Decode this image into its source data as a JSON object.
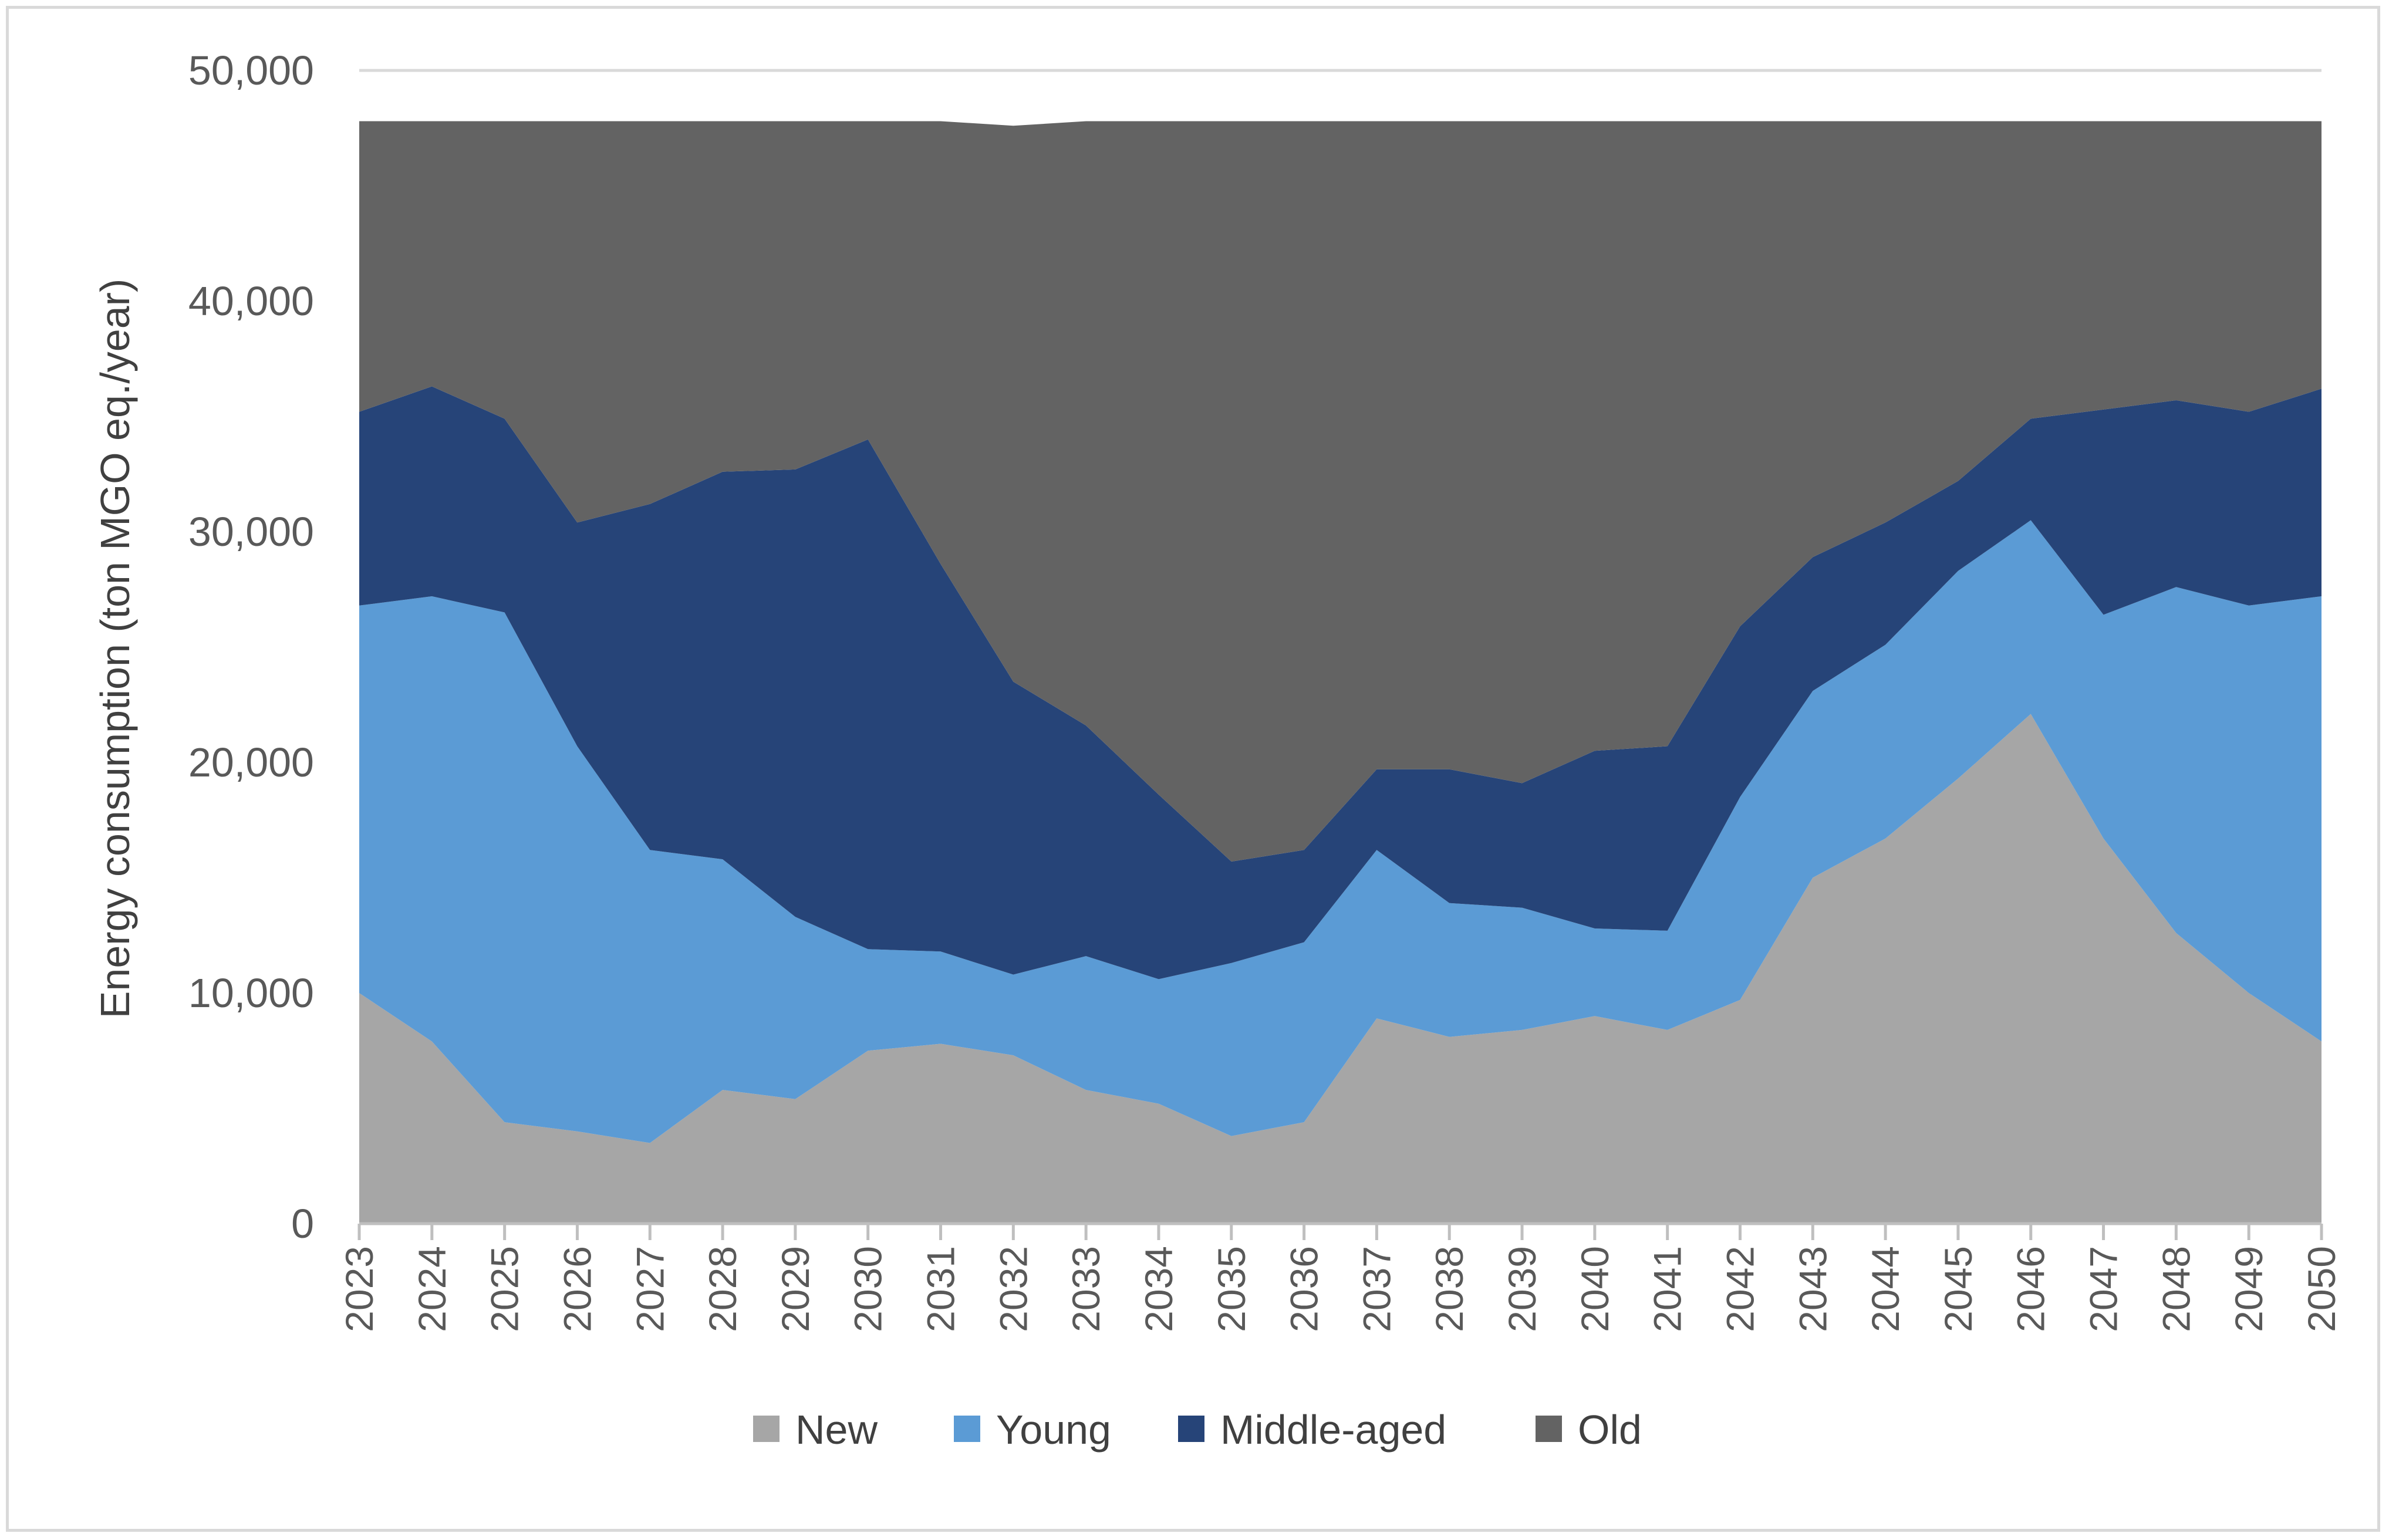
{
  "chart_data": {
    "type": "area",
    "stacked": true,
    "title": "",
    "xlabel": "",
    "ylabel": "Energy consumption (ton MGO eq./year)",
    "ylim": [
      0,
      50000
    ],
    "yticks": [
      0,
      10000,
      20000,
      30000,
      40000,
      50000
    ],
    "ytick_labels": [
      "0",
      "10,000",
      "20,000",
      "30,000",
      "40,000",
      "50,000"
    ],
    "grid": true,
    "legend_position": "bottom",
    "categories": [
      "2023",
      "2024",
      "2025",
      "2026",
      "2027",
      "2028",
      "2029",
      "2030",
      "2031",
      "2032",
      "2033",
      "2034",
      "2035",
      "2036",
      "2037",
      "2038",
      "2039",
      "2040",
      "2041",
      "2042",
      "2043",
      "2044",
      "2045",
      "2046",
      "2047",
      "2048",
      "2049",
      "2050"
    ],
    "series": [
      {
        "name": "New",
        "color": "#a6a6a6",
        "values": [
          10000,
          7900,
          4400,
          4000,
          3500,
          5800,
          5400,
          7500,
          7800,
          7300,
          5800,
          5200,
          3800,
          4400,
          8900,
          8100,
          8400,
          9000,
          8400,
          9700,
          15000,
          16700,
          19300,
          22100,
          16700,
          12600,
          10000,
          7900
        ]
      },
      {
        "name": "Young",
        "color": "#5b9bd5",
        "values": [
          16800,
          19300,
          22100,
          16700,
          12700,
          10000,
          7900,
          4400,
          4000,
          3500,
          5800,
          5400,
          7500,
          7800,
          7300,
          5800,
          5300,
          3800,
          4300,
          8800,
          8100,
          8400,
          9000,
          8400,
          9700,
          15000,
          16800,
          19300
        ]
      },
      {
        "name": "Middle-aged",
        "color": "#264478",
        "values": [
          8400,
          9100,
          8400,
          9700,
          15000,
          16800,
          19400,
          22100,
          16800,
          12700,
          10000,
          8000,
          4400,
          4000,
          3500,
          5800,
          5400,
          7700,
          8000,
          7400,
          5800,
          5300,
          3900,
          4400,
          8900,
          8100,
          8400,
          9000
        ]
      },
      {
        "name": "Old",
        "color": "#636363",
        "values": [
          12600,
          11500,
          12900,
          17400,
          16600,
          15200,
          15100,
          13800,
          19200,
          24100,
          26200,
          29200,
          32100,
          31600,
          28100,
          28100,
          28700,
          27300,
          27100,
          21900,
          18900,
          17400,
          15600,
          12900,
          12500,
          12100,
          12600,
          11600
        ]
      }
    ]
  }
}
